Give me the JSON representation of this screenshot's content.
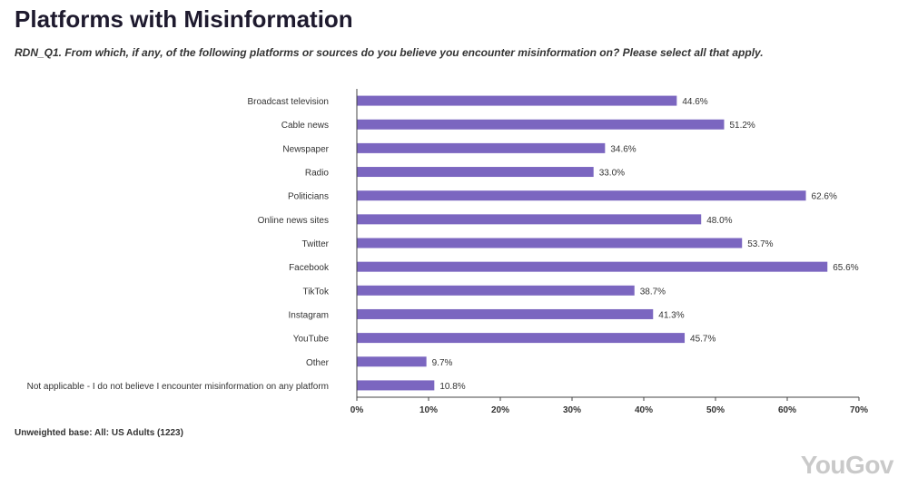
{
  "header": {
    "title": "Platforms with Misinformation",
    "subtitle": "RDN_Q1. From which, if any, of the following platforms or sources do you believe you encounter misinformation on? Please select all that apply."
  },
  "footer": {
    "base_note": "Unweighted base: All: US Adults (1223)",
    "logo": "YouGov"
  },
  "colors": {
    "bar": "#7b66c0",
    "axis": "#444444",
    "logo": "#c9c9c9"
  },
  "chart_data": {
    "type": "bar",
    "orientation": "horizontal",
    "categories": [
      "Broadcast television",
      "Cable news",
      "Newspaper",
      "Radio",
      "Politicians",
      "Online news sites",
      "Twitter",
      "Facebook",
      "TikTok",
      "Instagram",
      "YouTube",
      "Other",
      "Not applicable - I do not believe I encounter misinformation on any platform"
    ],
    "values": [
      44.6,
      51.2,
      34.6,
      33.0,
      62.6,
      48.0,
      53.7,
      65.6,
      38.7,
      41.3,
      45.7,
      9.7,
      10.8
    ],
    "value_labels": [
      "44.6%",
      "51.2%",
      "34.6%",
      "33.0%",
      "62.6%",
      "48.0%",
      "53.7%",
      "65.6%",
      "38.7%",
      "41.3%",
      "45.7%",
      "9.7%",
      "10.8%"
    ],
    "xlim": [
      0,
      70
    ],
    "x_ticks": [
      0,
      10,
      20,
      30,
      40,
      50,
      60,
      70
    ],
    "x_tick_labels": [
      "0%",
      "10%",
      "20%",
      "30%",
      "40%",
      "50%",
      "60%",
      "70%"
    ],
    "grid": false,
    "legend": "none"
  }
}
